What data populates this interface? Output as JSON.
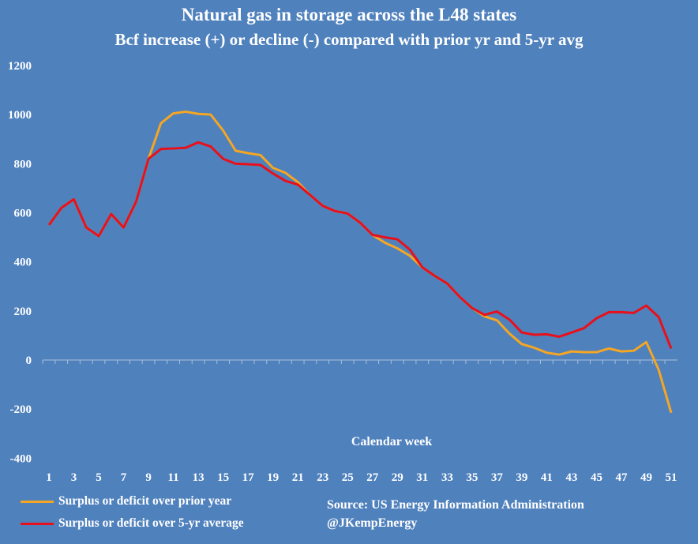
{
  "chart_data": {
    "type": "line",
    "title": "Natural gas in storage across the L48 states",
    "subtitle": "Bcf increase (+) or decline (-) compared with prior yr and 5-yr avg",
    "xlabel": "Calendar week",
    "ylabel": "",
    "ylim": [
      -400,
      1200
    ],
    "yticks": [
      -400,
      -200,
      0,
      200,
      400,
      600,
      800,
      1000,
      1200
    ],
    "x": [
      1,
      2,
      3,
      4,
      5,
      6,
      7,
      8,
      9,
      10,
      11,
      12,
      13,
      14,
      15,
      16,
      17,
      18,
      19,
      20,
      21,
      22,
      23,
      24,
      25,
      26,
      27,
      28,
      29,
      30,
      31,
      32,
      33,
      34,
      35,
      36,
      37,
      38,
      39,
      40,
      41,
      42,
      43,
      44,
      45,
      46,
      47,
      48,
      49,
      50,
      51
    ],
    "xtick_labels": [
      "1",
      "3",
      "5",
      "7",
      "9",
      "11",
      "13",
      "15",
      "17",
      "19",
      "21",
      "23",
      "25",
      "27",
      "29",
      "31",
      "33",
      "35",
      "37",
      "39",
      "41",
      "43",
      "45",
      "47",
      "49",
      "51"
    ],
    "series": [
      {
        "name": "Surplus or deficit over prior year",
        "color": "#f5a623",
        "values": [
          550,
          620,
          655,
          540,
          505,
          595,
          540,
          645,
          820,
          965,
          1005,
          1012,
          1003,
          1000,
          935,
          853,
          843,
          835,
          783,
          763,
          725,
          672,
          628,
          607,
          597,
          560,
          510,
          478,
          455,
          425,
          378,
          343,
          312,
          258,
          212,
          178,
          162,
          108,
          65,
          50,
          30,
          22,
          35,
          32,
          32,
          47,
          35,
          38,
          73,
          -40,
          -215
        ]
      },
      {
        "name": "Surplus or deficit over 5-yr average",
        "color": "#e8101a",
        "values": [
          550,
          620,
          655,
          540,
          505,
          595,
          540,
          645,
          820,
          860,
          862,
          865,
          887,
          870,
          820,
          800,
          798,
          795,
          760,
          730,
          715,
          672,
          628,
          607,
          597,
          560,
          510,
          500,
          492,
          450,
          378,
          343,
          312,
          258,
          212,
          184,
          198,
          165,
          112,
          103,
          105,
          95,
          112,
          130,
          170,
          195,
          195,
          192,
          222,
          175,
          47
        ]
      }
    ],
    "legend": "bottom-left",
    "annotations": [
      "Source: US Energy Information Administration",
      "@JKempEnergy"
    ],
    "grid": false
  }
}
